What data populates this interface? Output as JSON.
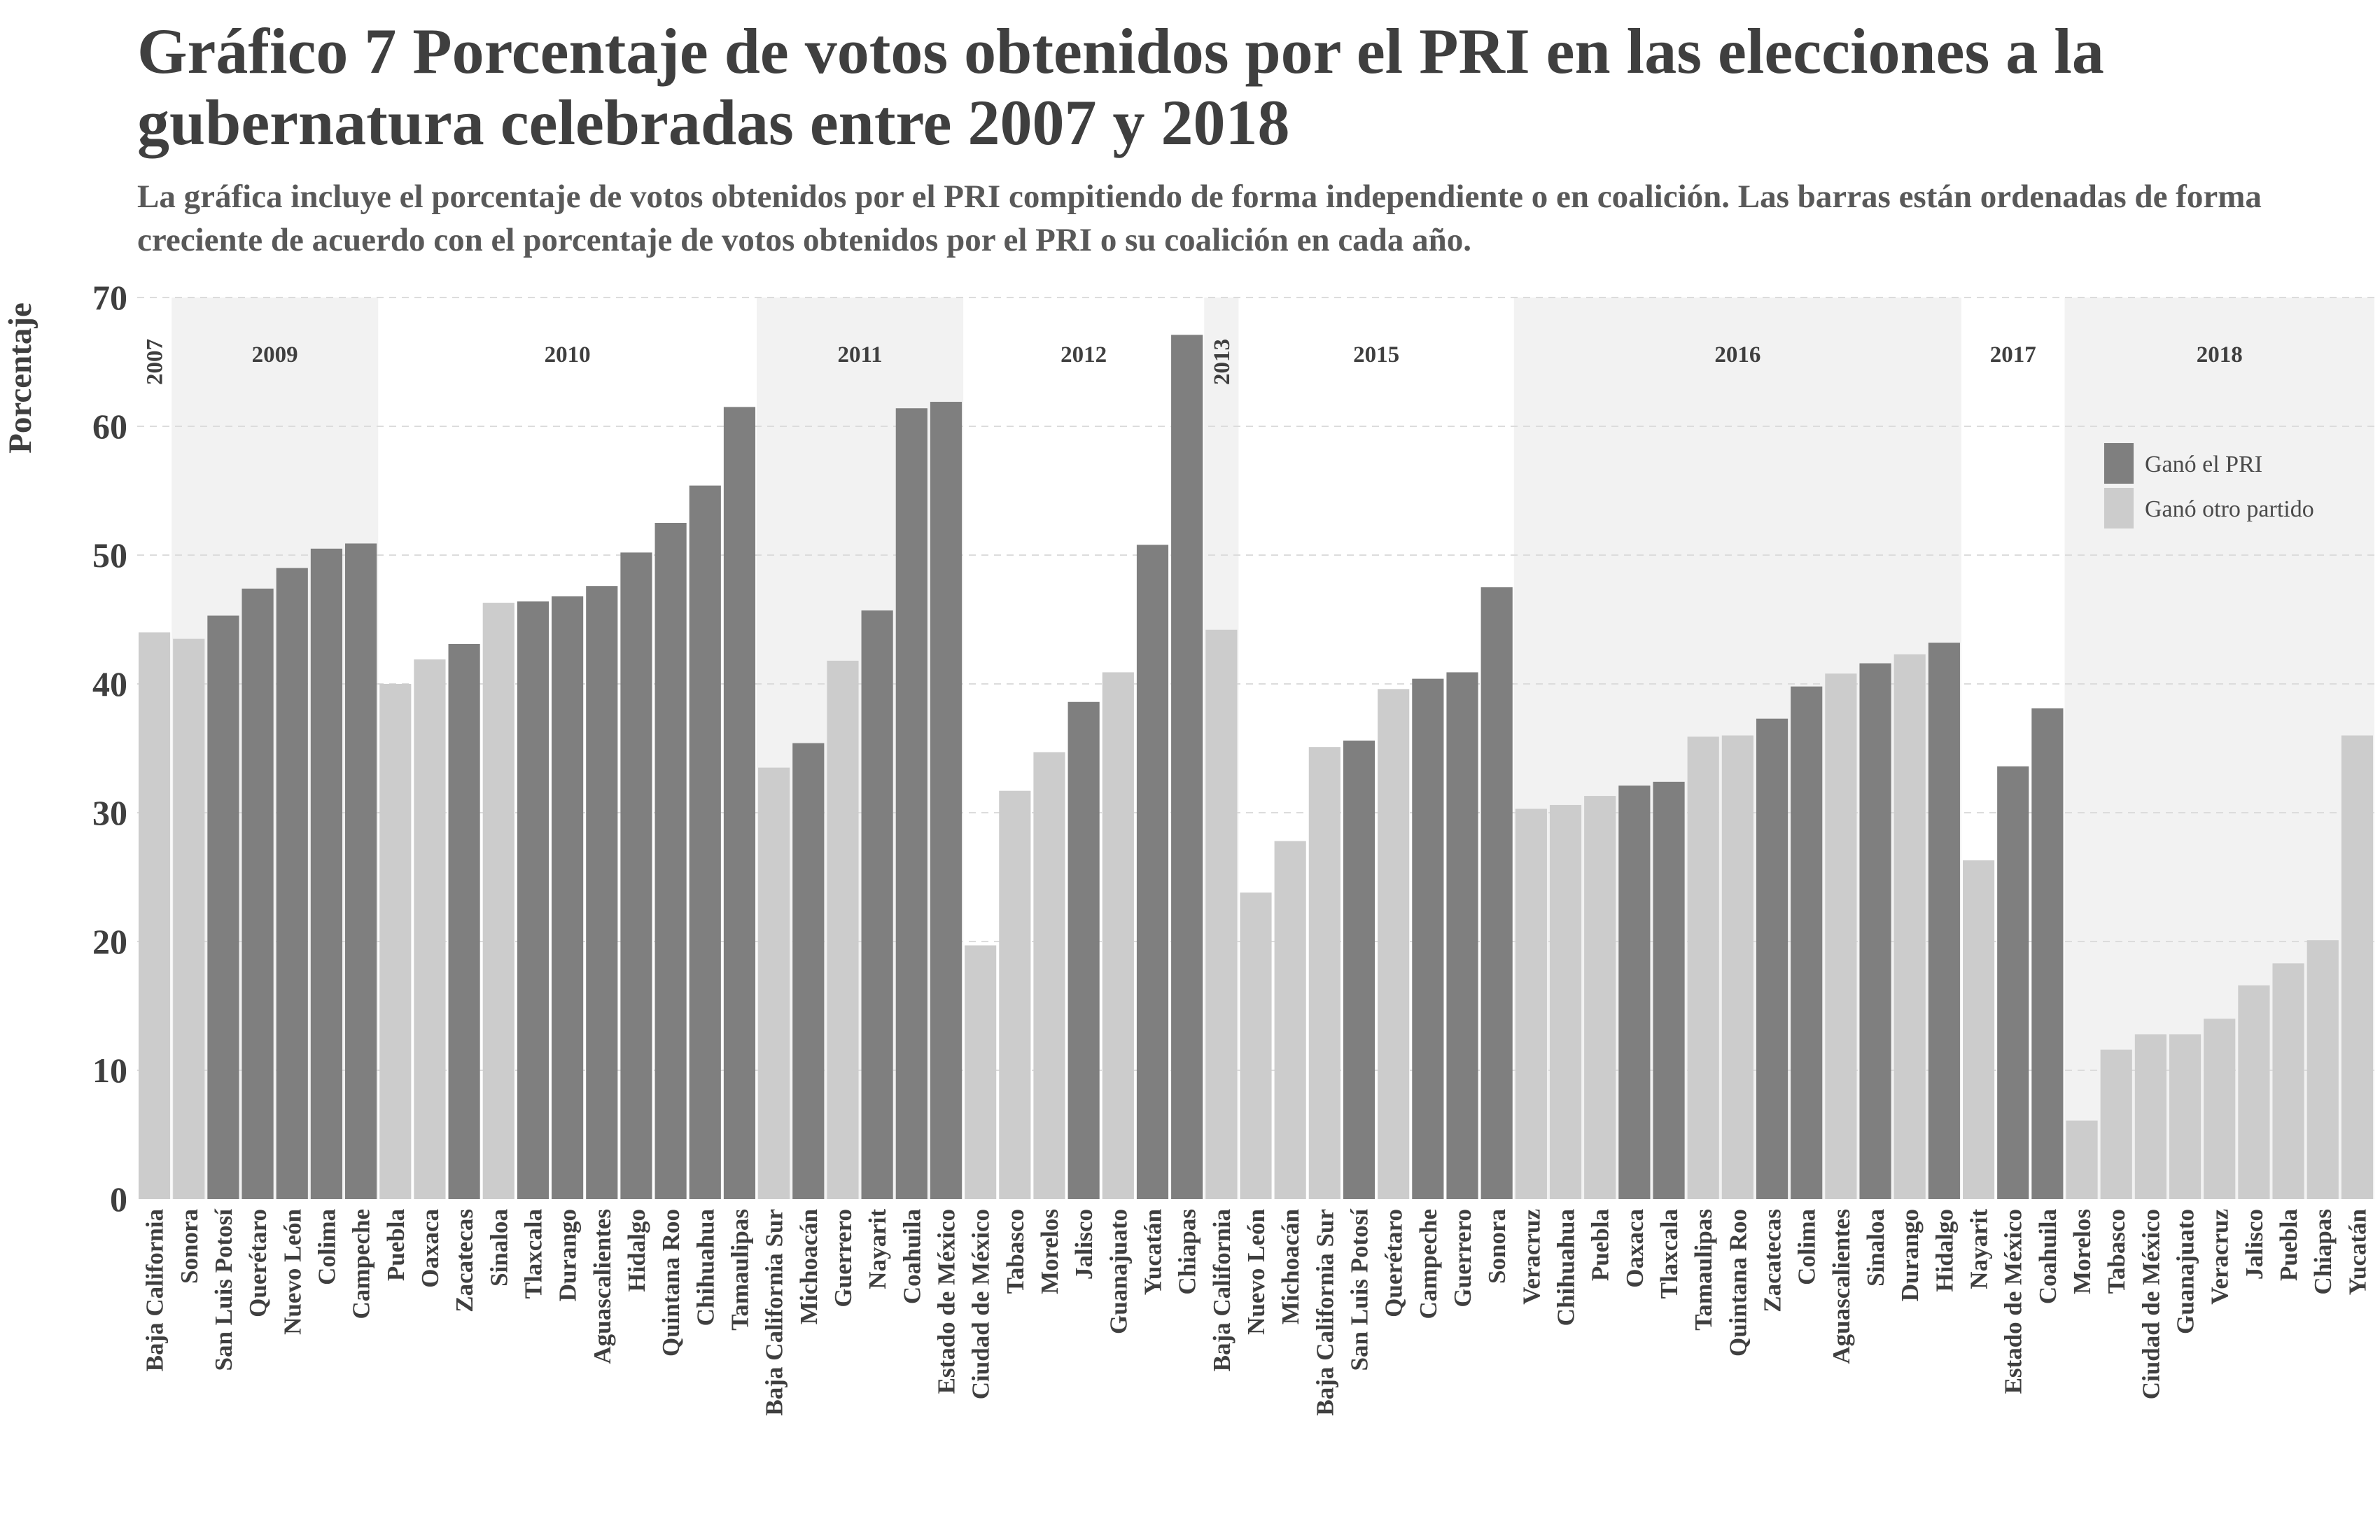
{
  "title": "Gráfico 7 Porcentaje de votos obtenidos por el PRI en las elecciones a la gubernatura celebradas entre 2007 y 2018",
  "subtitle": "La gráfica incluye el porcentaje de votos obtenidos por el PRI compitiendo de forma independiente o en coalición. Las barras están ordenadas de forma creciente de acuerdo con el porcentaje de votos obtenidos por el PRI o su coalición en cada año.",
  "colors": {
    "gano_pri": "#7f7f7f",
    "gano_otro": "#cccccc",
    "year_band": "#f2f2f2",
    "grid": "#dcdcdc",
    "text": "#3f3f3f"
  },
  "chart_data": {
    "type": "bar",
    "title": "Gráfico 7 Porcentaje de votos obtenidos por el PRI en las elecciones a la gubernatura celebradas entre 2007 y 2018",
    "ylabel": "Porcentaje",
    "xlabel": "",
    "ylim": [
      0,
      70
    ],
    "yticks": [
      0,
      10,
      20,
      30,
      40,
      50,
      60,
      70
    ],
    "grid": true,
    "legend_position": "top-right",
    "legend": [
      {
        "key": "gano_pri",
        "label": "Ganó el PRI"
      },
      {
        "key": "gano_otro",
        "label": "Ganó otro partido"
      }
    ],
    "years": [
      {
        "year": "2007",
        "vertical": true,
        "bars": [
          {
            "state": "Baja California",
            "value": 44.0,
            "winner": "gano_otro"
          }
        ]
      },
      {
        "year": "2009",
        "bars": [
          {
            "state": "Sonora",
            "value": 43.5,
            "winner": "gano_otro"
          },
          {
            "state": "San Luis Potosí",
            "value": 45.3,
            "winner": "gano_pri"
          },
          {
            "state": "Querétaro",
            "value": 47.4,
            "winner": "gano_pri"
          },
          {
            "state": "Nuevo León",
            "value": 49.0,
            "winner": "gano_pri"
          },
          {
            "state": "Colima",
            "value": 50.5,
            "winner": "gano_pri"
          },
          {
            "state": "Campeche",
            "value": 50.9,
            "winner": "gano_pri"
          }
        ]
      },
      {
        "year": "2010",
        "bars": [
          {
            "state": "Puebla",
            "value": 40.0,
            "winner": "gano_otro"
          },
          {
            "state": "Oaxaca",
            "value": 41.9,
            "winner": "gano_otro"
          },
          {
            "state": "Zacatecas",
            "value": 43.1,
            "winner": "gano_pri"
          },
          {
            "state": "Sinaloa",
            "value": 46.3,
            "winner": "gano_otro"
          },
          {
            "state": "Tlaxcala",
            "value": 46.4,
            "winner": "gano_pri"
          },
          {
            "state": "Durango",
            "value": 46.8,
            "winner": "gano_pri"
          },
          {
            "state": "Aguascalientes",
            "value": 47.6,
            "winner": "gano_pri"
          },
          {
            "state": "Hidalgo",
            "value": 50.2,
            "winner": "gano_pri"
          },
          {
            "state": "Quintana Roo",
            "value": 52.5,
            "winner": "gano_pri"
          },
          {
            "state": "Chihuahua",
            "value": 55.4,
            "winner": "gano_pri"
          },
          {
            "state": "Tamaulipas",
            "value": 61.5,
            "winner": "gano_pri"
          }
        ]
      },
      {
        "year": "2011",
        "bars": [
          {
            "state": "Baja California Sur",
            "value": 33.5,
            "winner": "gano_otro"
          },
          {
            "state": "Michoacán",
            "value": 35.4,
            "winner": "gano_pri"
          },
          {
            "state": "Guerrero",
            "value": 41.8,
            "winner": "gano_otro"
          },
          {
            "state": "Nayarit",
            "value": 45.7,
            "winner": "gano_pri"
          },
          {
            "state": "Coahuila",
            "value": 61.4,
            "winner": "gano_pri"
          },
          {
            "state": "Estado de México",
            "value": 61.9,
            "winner": "gano_pri"
          }
        ]
      },
      {
        "year": "2012",
        "bars": [
          {
            "state": "Ciudad de México",
            "value": 19.7,
            "winner": "gano_otro"
          },
          {
            "state": "Tabasco",
            "value": 31.7,
            "winner": "gano_otro"
          },
          {
            "state": "Morelos",
            "value": 34.7,
            "winner": "gano_otro"
          },
          {
            "state": "Jalisco",
            "value": 38.6,
            "winner": "gano_pri"
          },
          {
            "state": "Guanajuato",
            "value": 40.9,
            "winner": "gano_otro"
          },
          {
            "state": "Yucatán",
            "value": 50.8,
            "winner": "gano_pri"
          },
          {
            "state": "Chiapas",
            "value": 67.1,
            "winner": "gano_pri"
          }
        ]
      },
      {
        "year": "2013",
        "vertical": true,
        "bars": [
          {
            "state": "Baja California",
            "value": 44.2,
            "winner": "gano_otro"
          }
        ]
      },
      {
        "year": "2015",
        "bars": [
          {
            "state": "Nuevo León",
            "value": 23.8,
            "winner": "gano_otro"
          },
          {
            "state": "Michoacán",
            "value": 27.8,
            "winner": "gano_otro"
          },
          {
            "state": "Baja California Sur",
            "value": 35.1,
            "winner": "gano_otro"
          },
          {
            "state": "San Luis Potosí",
            "value": 35.6,
            "winner": "gano_pri"
          },
          {
            "state": "Querétaro",
            "value": 39.6,
            "winner": "gano_otro"
          },
          {
            "state": "Campeche",
            "value": 40.4,
            "winner": "gano_pri"
          },
          {
            "state": "Guerrero",
            "value": 40.9,
            "winner": "gano_pri"
          },
          {
            "state": "Sonora",
            "value": 47.5,
            "winner": "gano_pri"
          }
        ]
      },
      {
        "year": "2016",
        "bars": [
          {
            "state": "Veracruz",
            "value": 30.3,
            "winner": "gano_otro"
          },
          {
            "state": "Chihuahua",
            "value": 30.6,
            "winner": "gano_otro"
          },
          {
            "state": "Puebla",
            "value": 31.3,
            "winner": "gano_otro"
          },
          {
            "state": "Oaxaca",
            "value": 32.1,
            "winner": "gano_pri"
          },
          {
            "state": "Tlaxcala",
            "value": 32.4,
            "winner": "gano_pri"
          },
          {
            "state": "Tamaulipas",
            "value": 35.9,
            "winner": "gano_otro"
          },
          {
            "state": "Quintana Roo",
            "value": 36.0,
            "winner": "gano_otro"
          },
          {
            "state": "Zacatecas",
            "value": 37.3,
            "winner": "gano_pri"
          },
          {
            "state": "Colima",
            "value": 39.8,
            "winner": "gano_pri"
          },
          {
            "state": "Aguascalientes",
            "value": 40.8,
            "winner": "gano_otro"
          },
          {
            "state": "Sinaloa",
            "value": 41.6,
            "winner": "gano_pri"
          },
          {
            "state": "Durango",
            "value": 42.3,
            "winner": "gano_otro"
          },
          {
            "state": "Hidalgo",
            "value": 43.2,
            "winner": "gano_pri"
          }
        ]
      },
      {
        "year": "2017",
        "bars": [
          {
            "state": "Nayarit",
            "value": 26.3,
            "winner": "gano_otro"
          },
          {
            "state": "Estado de México",
            "value": 33.6,
            "winner": "gano_pri"
          },
          {
            "state": "Coahuila",
            "value": 38.1,
            "winner": "gano_pri"
          }
        ]
      },
      {
        "year": "2018",
        "bars": [
          {
            "state": "Morelos",
            "value": 6.1,
            "winner": "gano_otro"
          },
          {
            "state": "Tabasco",
            "value": 11.6,
            "winner": "gano_otro"
          },
          {
            "state": "Ciudad de México",
            "value": 12.8,
            "winner": "gano_otro"
          },
          {
            "state": "Guanajuato",
            "value": 12.8,
            "winner": "gano_otro"
          },
          {
            "state": "Veracruz",
            "value": 14.0,
            "winner": "gano_otro"
          },
          {
            "state": "Jalisco",
            "value": 16.6,
            "winner": "gano_otro"
          },
          {
            "state": "Puebla",
            "value": 18.3,
            "winner": "gano_otro"
          },
          {
            "state": "Chiapas",
            "value": 20.1,
            "winner": "gano_otro"
          },
          {
            "state": "Yucatán",
            "value": 36.0,
            "winner": "gano_otro"
          }
        ]
      }
    ]
  }
}
